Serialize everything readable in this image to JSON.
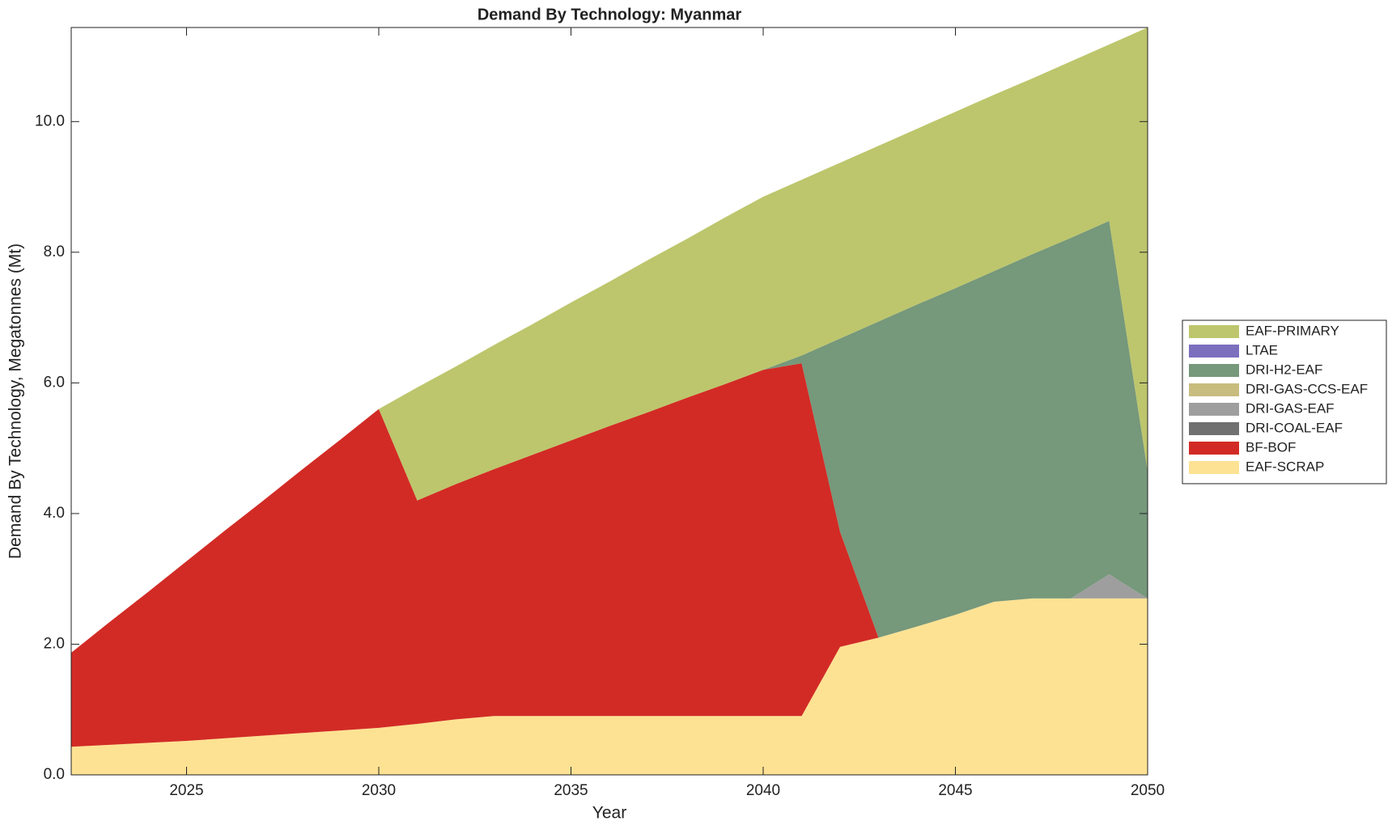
{
  "chart_data": {
    "type": "stacked_area",
    "title": "Demand By Technology: Myanmar",
    "x_label": "Year",
    "y_label": "Demand By Technology, Megatonnes (Mt)",
    "x": [
      2022,
      2023,
      2024,
      2025,
      2026,
      2027,
      2028,
      2029,
      2030,
      2031,
      2032,
      2033,
      2034,
      2035,
      2036,
      2037,
      2038,
      2039,
      2040,
      2041,
      2042,
      2043,
      2044,
      2045,
      2046,
      2047,
      2048,
      2049,
      2050
    ],
    "xlim": [
      2022,
      2050
    ],
    "xticks": [
      2025,
      2030,
      2035,
      2040,
      2045,
      2050
    ],
    "ylim": [
      0,
      11.44
    ],
    "yticks": [
      {
        "value": 0,
        "label": "0.0"
      },
      {
        "value": 2,
        "label": "2.0"
      },
      {
        "value": 4,
        "label": "4.0"
      },
      {
        "value": 6,
        "label": "6.0"
      },
      {
        "value": 8,
        "label": "8.0"
      },
      {
        "value": 10,
        "label": "10.0"
      }
    ],
    "legend": "right",
    "series": [
      {
        "name": "EAF-SCRAP",
        "color": "#fde293",
        "values": [
          0.43,
          0.46,
          0.49,
          0.52,
          0.56,
          0.6,
          0.64,
          0.68,
          0.72,
          0.78,
          0.85,
          0.9,
          0.9,
          0.9,
          0.9,
          0.9,
          0.9,
          0.9,
          0.9,
          0.9,
          1.96,
          2.1,
          2.27,
          2.45,
          2.65,
          2.7,
          2.7,
          2.7,
          2.7
        ]
      },
      {
        "name": "BF-BOF",
        "color": "#d22b25",
        "values": [
          1.44,
          1.88,
          2.31,
          2.75,
          3.18,
          3.6,
          4.03,
          4.45,
          4.88,
          3.42,
          3.6,
          3.78,
          4.0,
          4.22,
          4.44,
          4.65,
          4.87,
          5.08,
          5.3,
          5.4,
          1.76,
          0,
          0,
          0,
          0,
          0,
          0,
          0,
          0
        ]
      },
      {
        "name": "DRI-COAL-EAF",
        "color": "#707070",
        "values": [
          0,
          0,
          0,
          0,
          0,
          0,
          0,
          0,
          0,
          0,
          0,
          0,
          0,
          0,
          0,
          0,
          0,
          0,
          0,
          0,
          0,
          0,
          0,
          0,
          0,
          0,
          0,
          0,
          0
        ]
      },
      {
        "name": "DRI-GAS-EAF",
        "color": "#9e9e9e",
        "values": [
          0,
          0,
          0,
          0,
          0,
          0,
          0,
          0,
          0,
          0,
          0,
          0,
          0,
          0,
          0,
          0,
          0,
          0,
          0,
          0,
          0,
          0,
          0,
          0,
          0,
          0,
          0,
          0.37,
          0
        ]
      },
      {
        "name": "DRI-GAS-CCS-EAF",
        "color": "#c8bc7e",
        "values": [
          0,
          0,
          0,
          0,
          0,
          0,
          0,
          0,
          0,
          0,
          0,
          0,
          0,
          0,
          0,
          0,
          0,
          0,
          0,
          0,
          0,
          0,
          0,
          0,
          0,
          0,
          0,
          0,
          0
        ]
      },
      {
        "name": "DRI-H2-EAF",
        "color": "#76987b",
        "values": [
          0,
          0,
          0,
          0,
          0,
          0,
          0,
          0,
          0,
          0,
          0,
          0,
          0,
          0,
          0,
          0,
          0,
          0,
          0,
          0.12,
          2.96,
          4.84,
          4.93,
          5.0,
          5.06,
          5.27,
          5.52,
          5.41,
          1.95
        ]
      },
      {
        "name": "LTAE",
        "color": "#7b6fbe",
        "values": [
          0,
          0,
          0,
          0,
          0,
          0,
          0,
          0,
          0,
          0,
          0,
          0,
          0,
          0,
          0,
          0,
          0,
          0,
          0,
          0,
          0,
          0,
          0,
          0,
          0,
          0,
          0,
          0,
          0
        ]
      },
      {
        "name": "EAF-PRIMARY",
        "color": "#bdc66c",
        "values": [
          0,
          0,
          0,
          0,
          0,
          0,
          0,
          0,
          0,
          1.73,
          1.8,
          1.9,
          2.0,
          2.11,
          2.21,
          2.33,
          2.43,
          2.55,
          2.65,
          2.69,
          2.69,
          2.69,
          2.69,
          2.7,
          2.7,
          2.69,
          2.7,
          2.7,
          6.79
        ]
      }
    ]
  }
}
